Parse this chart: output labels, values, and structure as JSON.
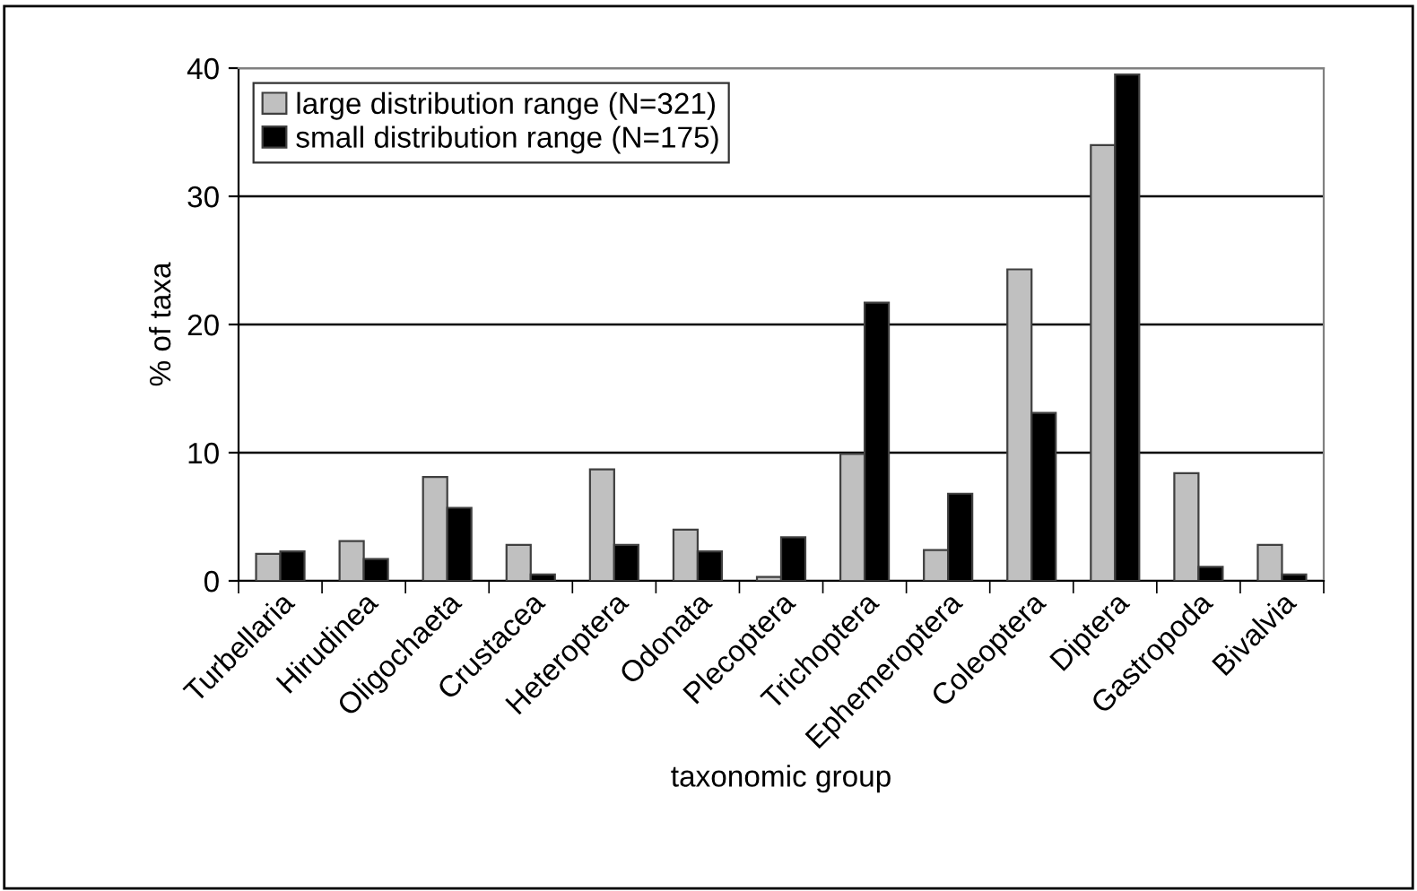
{
  "chart_data": {
    "type": "bar",
    "xlabel": "taxonomic group",
    "ylabel": "% of taxa",
    "categories": [
      "Turbellaria",
      "Hirudinea",
      "Oligochaeta",
      "Crustacea",
      "Heteroptera",
      "Odonata",
      "Plecoptera",
      "Trichoptera",
      "Ephemeroptera",
      "Coleoptera",
      "Diptera",
      "Gastropoda",
      "Bivalvia"
    ],
    "series": [
      {
        "name": "large distribution range (N=321)",
        "color": "#c0c0c0",
        "values": [
          2.1,
          3.1,
          8.1,
          2.8,
          8.7,
          4.0,
          0.3,
          9.9,
          2.4,
          24.3,
          34.0,
          8.4,
          2.8
        ]
      },
      {
        "name": "small distribution range (N=175)",
        "color": "#000000",
        "values": [
          2.3,
          1.7,
          5.7,
          0.5,
          2.8,
          2.3,
          3.4,
          21.7,
          6.8,
          13.1,
          39.5,
          1.1,
          0.5
        ]
      }
    ],
    "ylim": [
      0,
      40
    ],
    "yticks": [
      0,
      10,
      20,
      30,
      40
    ],
    "grid": "y",
    "legend": "top left"
  }
}
